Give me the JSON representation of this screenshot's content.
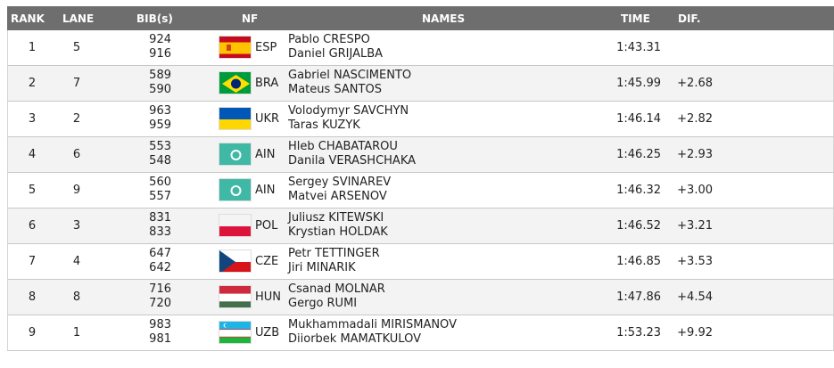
{
  "header": {
    "rank": "RANK",
    "lane": "LANE",
    "bib": "BIB(s)",
    "nf": "NF",
    "names": "NAMES",
    "time": "TIME",
    "dif": "DIF."
  },
  "rows": [
    {
      "rank": "1",
      "lane": "5",
      "bib1": "924",
      "bib2": "916",
      "nf": "ESP",
      "flag": "spain-flag-icon",
      "name1": "Pablo CRESPO",
      "name2": "Daniel GRIJALBA",
      "time": "1:43.31",
      "dif": ""
    },
    {
      "rank": "2",
      "lane": "7",
      "bib1": "589",
      "bib2": "590",
      "nf": "BRA",
      "flag": "brazil-flag-icon",
      "name1": "Gabriel NASCIMENTO",
      "name2": "Mateus SANTOS",
      "time": "1:45.99",
      "dif": "+2.68"
    },
    {
      "rank": "3",
      "lane": "2",
      "bib1": "963",
      "bib2": "959",
      "nf": "UKR",
      "flag": "ukraine-flag-icon",
      "name1": "Volodymyr SAVCHYN",
      "name2": "Taras KUZYK",
      "time": "1:46.14",
      "dif": "+2.82"
    },
    {
      "rank": "4",
      "lane": "6",
      "bib1": "553",
      "bib2": "548",
      "nf": "AIN",
      "flag": "ain-flag-icon",
      "name1": "Hleb CHABATAROU",
      "name2": "Danila VERASHCHAKA",
      "time": "1:46.25",
      "dif": "+2.93"
    },
    {
      "rank": "5",
      "lane": "9",
      "bib1": "560",
      "bib2": "557",
      "nf": "AIN",
      "flag": "ain-flag-icon",
      "name1": "Sergey SVINAREV",
      "name2": "Matvei ARSENOV",
      "time": "1:46.32",
      "dif": "+3.00"
    },
    {
      "rank": "6",
      "lane": "3",
      "bib1": "831",
      "bib2": "833",
      "nf": "POL",
      "flag": "poland-flag-icon",
      "name1": "Juliusz KITEWSKI",
      "name2": "Krystian HOLDAK",
      "time": "1:46.52",
      "dif": "+3.21"
    },
    {
      "rank": "7",
      "lane": "4",
      "bib1": "647",
      "bib2": "642",
      "nf": "CZE",
      "flag": "czech-flag-icon",
      "name1": "Petr TETTINGER",
      "name2": "Jiri MINARIK",
      "time": "1:46.85",
      "dif": "+3.53"
    },
    {
      "rank": "8",
      "lane": "8",
      "bib1": "716",
      "bib2": "720",
      "nf": "HUN",
      "flag": "hungary-flag-icon",
      "name1": "Csanad MOLNAR",
      "name2": "Gergo RUMI",
      "time": "1:47.86",
      "dif": "+4.54"
    },
    {
      "rank": "9",
      "lane": "1",
      "bib1": "983",
      "bib2": "981",
      "nf": "UZB",
      "flag": "uzbekistan-flag-icon",
      "name1": "Mukhammadali MIRISMANOV",
      "name2": "Diiorbek MAMATKULOV",
      "time": "1:53.23",
      "dif": "+9.92"
    }
  ]
}
